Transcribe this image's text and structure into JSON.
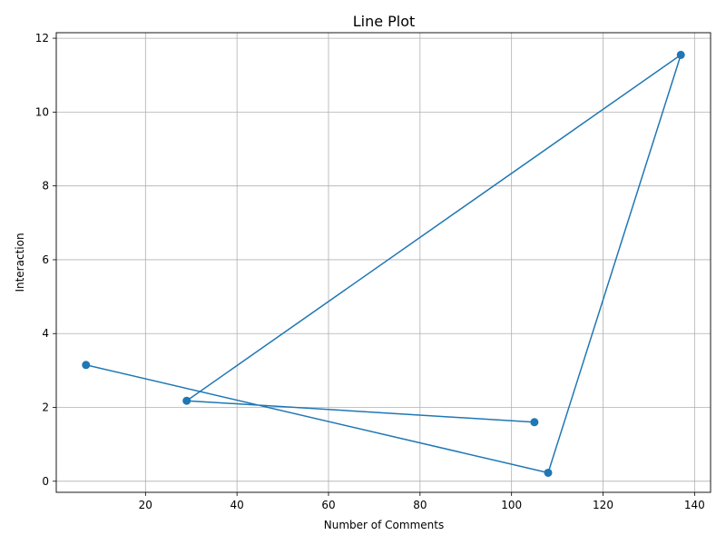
{
  "chart_data": {
    "type": "line",
    "title": "Line Plot",
    "xlabel": "Number of Comments",
    "ylabel": "Interaction",
    "xlim": [
      0.5,
      143.5
    ],
    "ylim": [
      -0.3,
      12.15
    ],
    "xticks": [
      20,
      40,
      60,
      80,
      100,
      120,
      140
    ],
    "yticks": [
      0,
      2,
      4,
      6,
      8,
      10,
      12
    ],
    "grid": true,
    "series": [
      {
        "color": "#1f77b4",
        "marker": "circle",
        "points": [
          {
            "x": 105,
            "y": 1.6
          },
          {
            "x": 29,
            "y": 2.18
          },
          {
            "x": 137,
            "y": 11.55
          },
          {
            "x": 108,
            "y": 0.23
          },
          {
            "x": 7,
            "y": 3.15
          }
        ]
      }
    ]
  }
}
